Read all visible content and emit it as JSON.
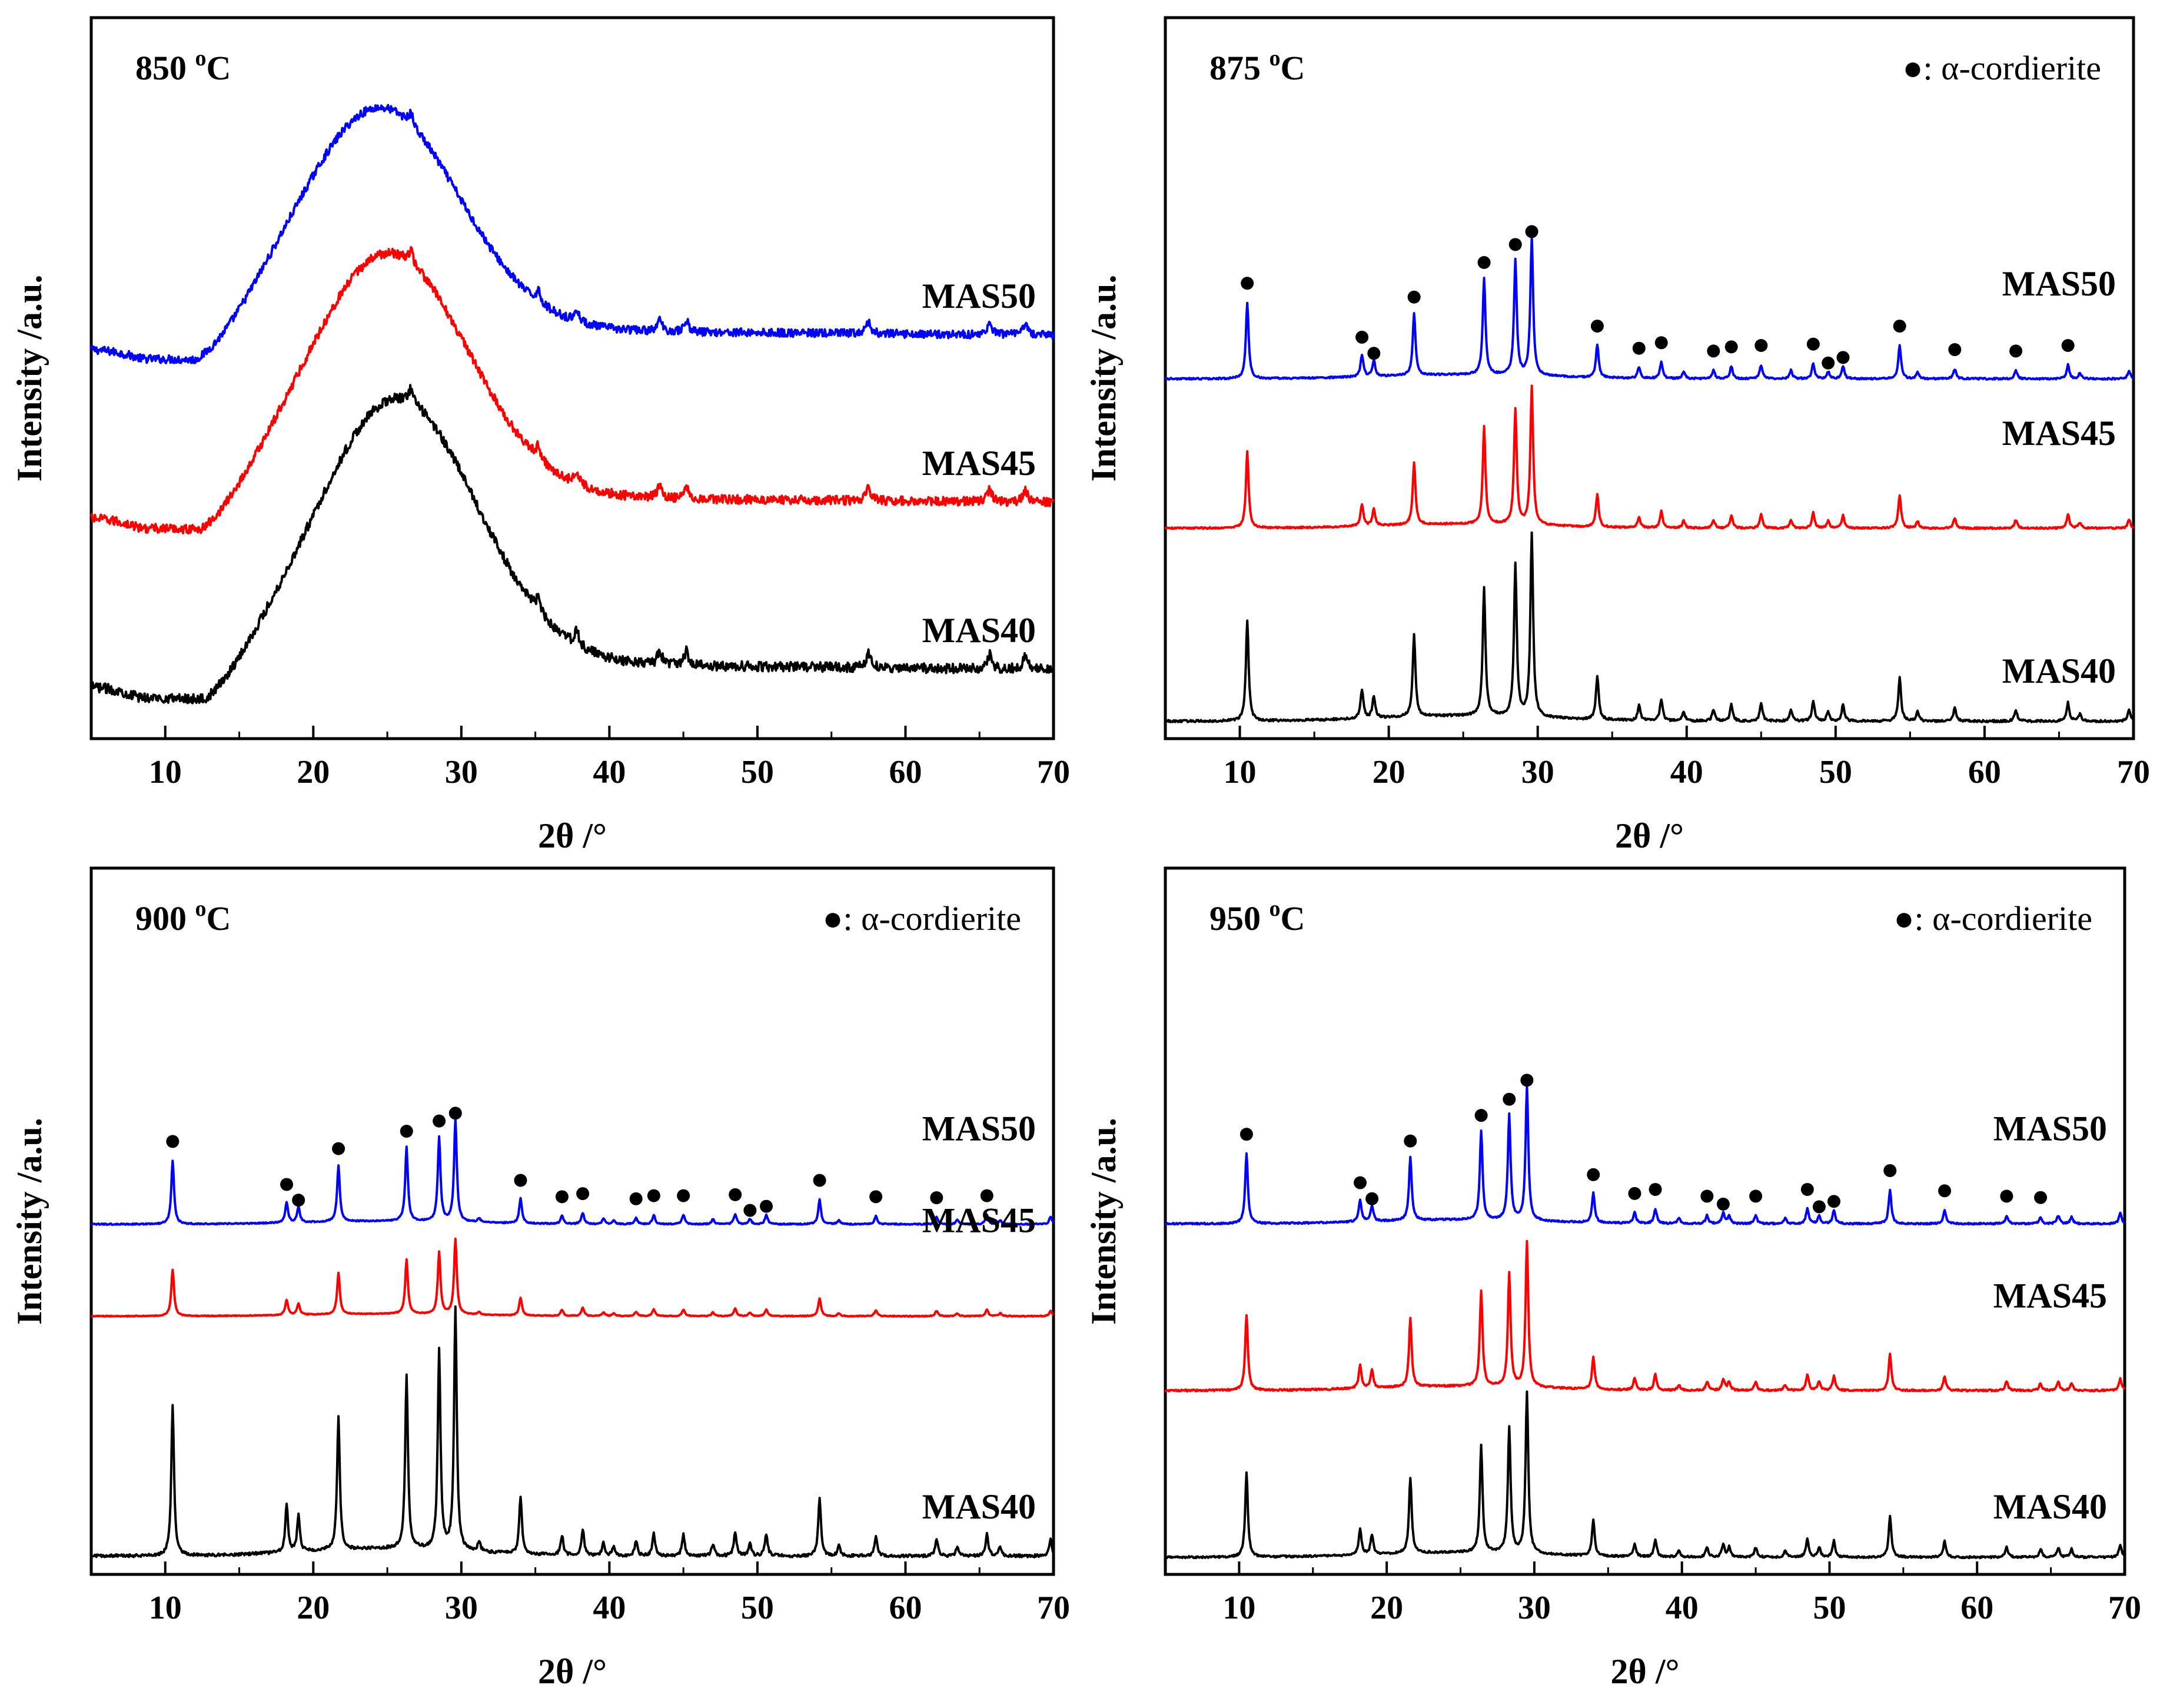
{
  "chart_data": [
    {
      "type": "line",
      "title": "850 °C",
      "title_main": "850 ",
      "title_sup": "o",
      "title_unit": "C",
      "xlabel": "2θ /°",
      "ylabel": "Intensity /a.u.",
      "xlim": [
        5,
        70
      ],
      "xticks": [
        10,
        20,
        30,
        40,
        50,
        60,
        70
      ],
      "legend": "",
      "marker_peaks": [],
      "pattern": "amorphous",
      "hump_center": 23.5,
      "sharp_peaks": [
        26.6,
        35.2,
        37.8,
        43.4,
        45.2,
        57.5,
        65.7,
        68.1
      ],
      "series": [
        {
          "name": "MAS50",
          "color": "#0000ff",
          "offset": 0.62,
          "scale": 0.42
        },
        {
          "name": "MAS45",
          "color": "#ff0000",
          "offset": 0.31,
          "scale": 0.46
        },
        {
          "name": "MAS40",
          "color": "#000000",
          "offset": 0.0,
          "scale": 0.5
        }
      ]
    },
    {
      "type": "line",
      "title": "875 °C",
      "title_main": "875 ",
      "title_sup": "o",
      "title_unit": "C",
      "xlabel": "2θ /°",
      "ylabel": "Intensity /a.u.",
      "xlim": [
        5,
        70
      ],
      "xticks": [
        10,
        20,
        30,
        40,
        50,
        60,
        70
      ],
      "legend": "●: α-cordierite",
      "pattern": "crystalline",
      "peaks": [
        {
          "x": 10.5,
          "h": 0.55
        },
        {
          "x": 18.2,
          "h": 0.16
        },
        {
          "x": 19.0,
          "h": 0.12
        },
        {
          "x": 21.7,
          "h": 0.45
        },
        {
          "x": 26.4,
          "h": 0.7
        },
        {
          "x": 28.5,
          "h": 0.83
        },
        {
          "x": 29.6,
          "h": 1.0
        },
        {
          "x": 34.0,
          "h": 0.24
        },
        {
          "x": 36.8,
          "h": 0.08
        },
        {
          "x": 38.3,
          "h": 0.12
        },
        {
          "x": 39.8,
          "h": 0.05
        },
        {
          "x": 41.8,
          "h": 0.06
        },
        {
          "x": 43.0,
          "h": 0.09
        },
        {
          "x": 45.0,
          "h": 0.1
        },
        {
          "x": 47.0,
          "h": 0.06
        },
        {
          "x": 48.5,
          "h": 0.11
        },
        {
          "x": 49.5,
          "h": 0.05
        },
        {
          "x": 50.5,
          "h": 0.09
        },
        {
          "x": 54.3,
          "h": 0.24
        },
        {
          "x": 55.5,
          "h": 0.05
        },
        {
          "x": 58.0,
          "h": 0.07
        },
        {
          "x": 62.1,
          "h": 0.06
        },
        {
          "x": 65.6,
          "h": 0.1
        },
        {
          "x": 66.4,
          "h": 0.04
        },
        {
          "x": 69.7,
          "h": 0.06
        }
      ],
      "marker_peaks": [
        10.5,
        18.2,
        19.0,
        21.7,
        26.4,
        28.5,
        29.6,
        34.0,
        36.8,
        38.3,
        41.8,
        43.0,
        45.0,
        48.5,
        49.5,
        50.5,
        54.3,
        58.0,
        62.1,
        65.6
      ],
      "series": [
        {
          "name": "MAS50",
          "color": "#0000ff",
          "offset": 0.62,
          "scale": 0.25,
          "markers": true
        },
        {
          "name": "MAS45",
          "color": "#ff0000",
          "offset": 0.35,
          "scale": 0.25,
          "markers": false
        },
        {
          "name": "MAS40",
          "color": "#000000",
          "offset": 0.0,
          "scale": 0.33,
          "markers": false
        }
      ]
    },
    {
      "type": "line",
      "title": "900 °C",
      "title_main": "900 ",
      "title_sup": "o",
      "title_unit": "C",
      "xlabel": "2θ /°",
      "ylabel": "Intensity /a.u.",
      "xlim": [
        5,
        70
      ],
      "xticks": [
        10,
        20,
        30,
        40,
        50,
        60,
        70
      ],
      "legend": "●: α-cordierite",
      "pattern": "crystalline",
      "peaks": [
        {
          "x": 10.5,
          "h": 0.62
        },
        {
          "x": 18.2,
          "h": 0.2
        },
        {
          "x": 19.0,
          "h": 0.15
        },
        {
          "x": 21.7,
          "h": 0.55
        },
        {
          "x": 26.3,
          "h": 0.72
        },
        {
          "x": 28.5,
          "h": 0.82
        },
        {
          "x": 29.6,
          "h": 1.0
        },
        {
          "x": 31.2,
          "h": 0.04
        },
        {
          "x": 34.0,
          "h": 0.24
        },
        {
          "x": 36.8,
          "h": 0.08
        },
        {
          "x": 38.2,
          "h": 0.11
        },
        {
          "x": 39.6,
          "h": 0.05
        },
        {
          "x": 40.3,
          "h": 0.04
        },
        {
          "x": 41.8,
          "h": 0.06
        },
        {
          "x": 43.0,
          "h": 0.09
        },
        {
          "x": 45.0,
          "h": 0.09
        },
        {
          "x": 47.0,
          "h": 0.05
        },
        {
          "x": 48.5,
          "h": 0.1
        },
        {
          "x": 49.5,
          "h": 0.05
        },
        {
          "x": 50.6,
          "h": 0.09
        },
        {
          "x": 54.2,
          "h": 0.24
        },
        {
          "x": 55.5,
          "h": 0.04
        },
        {
          "x": 58.0,
          "h": 0.08
        },
        {
          "x": 62.1,
          "h": 0.07
        },
        {
          "x": 63.5,
          "h": 0.04
        },
        {
          "x": 65.5,
          "h": 0.09
        },
        {
          "x": 66.4,
          "h": 0.04
        },
        {
          "x": 69.8,
          "h": 0.07
        }
      ],
      "marker_peaks": [
        10.5,
        18.2,
        19.0,
        21.7,
        26.3,
        28.5,
        29.6,
        34.0,
        36.8,
        38.2,
        41.8,
        43.0,
        45.0,
        48.5,
        49.5,
        50.6,
        54.2,
        58.0,
        62.1,
        65.5
      ],
      "series": [
        {
          "name": "MAS50",
          "color": "#0000ff",
          "offset": 0.62,
          "scale": 0.19,
          "markers": true
        },
        {
          "name": "MAS45",
          "color": "#ff0000",
          "offset": 0.45,
          "scale": 0.14,
          "markers": false
        },
        {
          "name": "MAS40",
          "color": "#000000",
          "offset": 0.0,
          "scale": 0.45,
          "markers": false
        }
      ]
    },
    {
      "type": "line",
      "title": "950 °C",
      "title_main": "950 ",
      "title_sup": "o",
      "title_unit": "C",
      "xlabel": "2θ /°",
      "ylabel": "Intensity /a.u.",
      "xlim": [
        5,
        70
      ],
      "xticks": [
        10,
        20,
        30,
        40,
        50,
        60,
        70
      ],
      "legend": "●: α-cordierite",
      "pattern": "crystalline",
      "peaks": [
        {
          "x": 10.5,
          "h": 0.52
        },
        {
          "x": 18.2,
          "h": 0.16
        },
        {
          "x": 19.0,
          "h": 0.12
        },
        {
          "x": 21.6,
          "h": 0.47
        },
        {
          "x": 26.4,
          "h": 0.66
        },
        {
          "x": 28.3,
          "h": 0.78
        },
        {
          "x": 29.5,
          "h": 1.0
        },
        {
          "x": 34.0,
          "h": 0.22
        },
        {
          "x": 36.8,
          "h": 0.08
        },
        {
          "x": 38.2,
          "h": 0.11
        },
        {
          "x": 39.8,
          "h": 0.04
        },
        {
          "x": 41.7,
          "h": 0.06
        },
        {
          "x": 42.8,
          "h": 0.08
        },
        {
          "x": 43.2,
          "h": 0.06
        },
        {
          "x": 45.0,
          "h": 0.06
        },
        {
          "x": 47.0,
          "h": 0.04
        },
        {
          "x": 48.5,
          "h": 0.11
        },
        {
          "x": 49.3,
          "h": 0.06
        },
        {
          "x": 50.3,
          "h": 0.1
        },
        {
          "x": 54.1,
          "h": 0.25
        },
        {
          "x": 57.8,
          "h": 0.1
        },
        {
          "x": 62.0,
          "h": 0.06
        },
        {
          "x": 64.3,
          "h": 0.05
        },
        {
          "x": 65.5,
          "h": 0.06
        },
        {
          "x": 66.4,
          "h": 0.05
        },
        {
          "x": 69.7,
          "h": 0.08
        }
      ],
      "marker_peaks": [
        10.5,
        18.2,
        19.0,
        21.6,
        26.4,
        28.3,
        29.5,
        34.0,
        36.8,
        38.2,
        41.7,
        42.8,
        45.0,
        48.5,
        49.3,
        50.3,
        54.1,
        57.8,
        62.0,
        64.3
      ],
      "series": [
        {
          "name": "MAS50",
          "color": "#0000ff",
          "offset": 0.62,
          "scale": 0.25,
          "markers": true
        },
        {
          "name": "MAS45",
          "color": "#ff0000",
          "offset": 0.31,
          "scale": 0.27,
          "markers": false
        },
        {
          "name": "MAS40",
          "color": "#000000",
          "offset": 0.0,
          "scale": 0.3,
          "markers": false
        }
      ]
    }
  ]
}
